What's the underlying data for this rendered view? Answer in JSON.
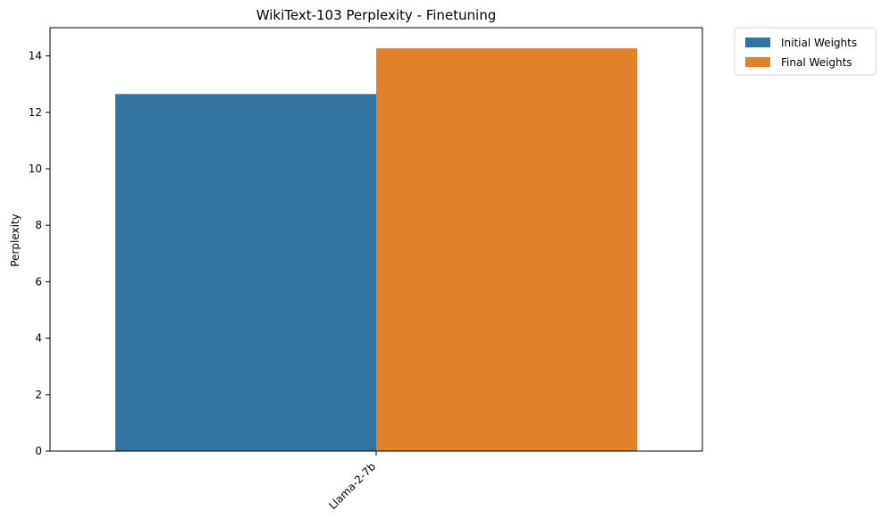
{
  "chart_data": {
    "type": "bar",
    "title": "WikiText-103 Perplexity - Finetuning",
    "xlabel": "",
    "ylabel": "Perplexity",
    "categories": [
      "Llama-2-7b"
    ],
    "series": [
      {
        "name": "Initial Weights",
        "values": [
          12.65
        ],
        "color": "#3274a1"
      },
      {
        "name": "Final Weights",
        "values": [
          14.27
        ],
        "color": "#e1812c"
      }
    ],
    "ylim": [
      0,
      15
    ],
    "yticks": [
      0,
      2,
      4,
      6,
      8,
      10,
      12,
      14
    ],
    "grid": false,
    "legend_position": "outside-top-right"
  }
}
